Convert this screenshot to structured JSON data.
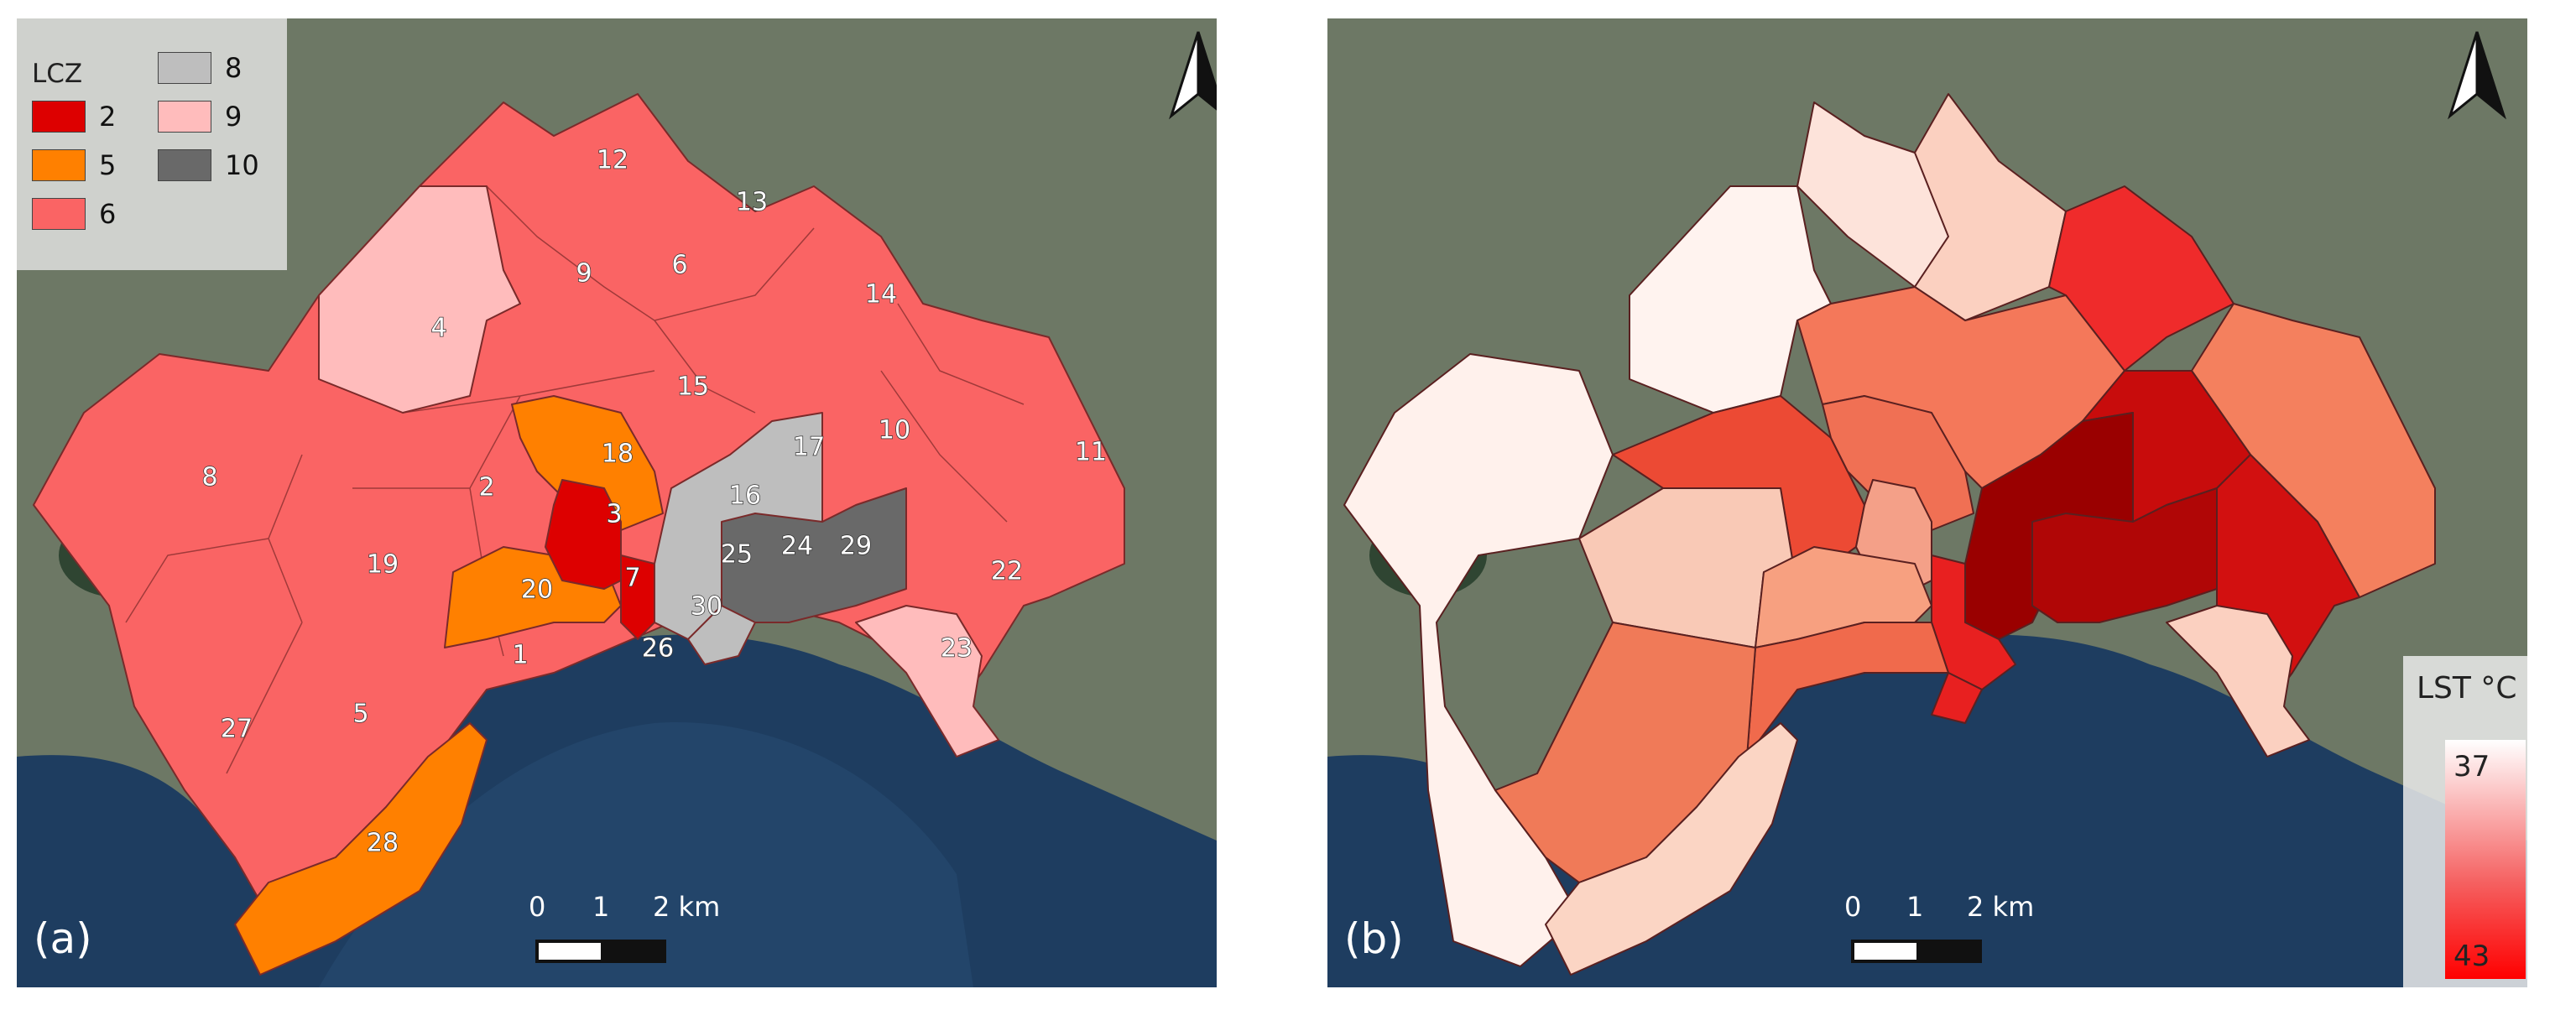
{
  "panel_a": {
    "label": "(a)",
    "legend": {
      "title": "LCZ",
      "items": [
        {
          "label": "2",
          "color": "#dd0000"
        },
        {
          "label": "5",
          "color": "#ff8000"
        },
        {
          "label": "6",
          "color": "#fa6464"
        },
        {
          "label": "8",
          "color": "#bebebe"
        },
        {
          "label": "9",
          "color": "#ffbcbc"
        },
        {
          "label": "10",
          "color": "#696969"
        }
      ]
    },
    "district_labels": [
      "12",
      "13",
      "9",
      "6",
      "14",
      "4",
      "15",
      "17",
      "10",
      "11",
      "18",
      "8",
      "2",
      "16",
      "3",
      "25",
      "24",
      "29",
      "22",
      "19",
      "20",
      "7",
      "30",
      "23",
      "1",
      "26",
      "27",
      "5",
      "28"
    ]
  },
  "panel_b": {
    "label": "(b)",
    "colorbar": {
      "title": "LST °C",
      "min": "37",
      "max": "43",
      "color_min": "#ffffff",
      "color_max": "#ff0000"
    }
  },
  "scale_bar": {
    "ticks": [
      "0",
      "1",
      "2 km"
    ]
  },
  "north_arrow": "north-arrow-icon",
  "colors": {
    "sea": "#1c3a5c",
    "land": "#6f7a66"
  }
}
